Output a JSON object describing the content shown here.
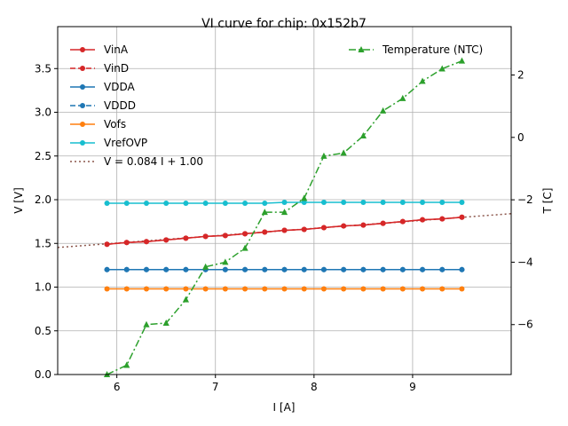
{
  "chart_data": {
    "type": "line",
    "title": "VI curve for chip: 0x152b7",
    "xlabel": "I [A]",
    "ylabel": "V [V]",
    "y2label": "T [C]",
    "xlim": [
      5.4,
      10.0
    ],
    "ylim": [
      0.0,
      3.98
    ],
    "y2lim": [
      -7.6,
      3.55
    ],
    "xticks": [
      6,
      7,
      8,
      9
    ],
    "yticks": [
      0.0,
      0.5,
      1.0,
      1.5,
      2.0,
      2.5,
      3.0,
      3.5
    ],
    "y2ticks": [
      -6,
      -4,
      -2,
      0,
      2
    ],
    "grid": true,
    "x": [
      5.9,
      6.1,
      6.3,
      6.5,
      6.7,
      6.9,
      7.1,
      7.3,
      7.5,
      7.7,
      7.9,
      8.1,
      8.3,
      8.5,
      8.7,
      8.9,
      9.1,
      9.3,
      9.5
    ],
    "series": [
      {
        "name": "VinA",
        "color": "#d62728",
        "style": "solid",
        "marker": "circle",
        "values": [
          1.49,
          1.51,
          1.52,
          1.54,
          1.56,
          1.58,
          1.59,
          1.61,
          1.63,
          1.65,
          1.66,
          1.68,
          1.7,
          1.71,
          1.73,
          1.75,
          1.77,
          1.78,
          1.8
        ]
      },
      {
        "name": "VinD",
        "color": "#d62728",
        "style": "dashed",
        "marker": "circle",
        "values": [
          1.49,
          1.51,
          1.52,
          1.54,
          1.56,
          1.58,
          1.59,
          1.61,
          1.63,
          1.65,
          1.66,
          1.68,
          1.7,
          1.71,
          1.73,
          1.75,
          1.77,
          1.78,
          1.8
        ]
      },
      {
        "name": "VDDA",
        "color": "#1f77b4",
        "style": "solid",
        "marker": "circle",
        "values": [
          1.2,
          1.2,
          1.2,
          1.2,
          1.2,
          1.2,
          1.2,
          1.2,
          1.2,
          1.2,
          1.2,
          1.2,
          1.2,
          1.2,
          1.2,
          1.2,
          1.2,
          1.2,
          1.2
        ]
      },
      {
        "name": "VDDD",
        "color": "#1f77b4",
        "style": "dashed",
        "marker": "circle",
        "values": [
          1.2,
          1.2,
          1.2,
          1.2,
          1.2,
          1.2,
          1.2,
          1.2,
          1.2,
          1.2,
          1.2,
          1.2,
          1.2,
          1.2,
          1.2,
          1.2,
          1.2,
          1.2,
          1.2
        ]
      },
      {
        "name": "Vofs",
        "color": "#ff7f0e",
        "style": "solid",
        "marker": "circle",
        "values": [
          0.98,
          0.98,
          0.98,
          0.98,
          0.98,
          0.98,
          0.98,
          0.98,
          0.98,
          0.98,
          0.98,
          0.98,
          0.98,
          0.98,
          0.98,
          0.98,
          0.98,
          0.98,
          0.98
        ]
      },
      {
        "name": "VrefOVP",
        "color": "#17becf",
        "style": "solid",
        "marker": "circle",
        "values": [
          1.96,
          1.96,
          1.96,
          1.96,
          1.96,
          1.96,
          1.96,
          1.96,
          1.96,
          1.97,
          1.97,
          1.97,
          1.97,
          1.97,
          1.97,
          1.97,
          1.97,
          1.97,
          1.97
        ]
      }
    ],
    "fit": {
      "label": "V = 0.084 I + 1.00",
      "slope": 0.084,
      "intercept": 1.0,
      "color": "#8c564b",
      "style": "dotted"
    },
    "secondary_series": [
      {
        "name": "Temperature (NTC)",
        "color": "#2ca02c",
        "style": "dashdot",
        "marker": "triangle",
        "values": [
          -7.6,
          -7.3,
          -6.0,
          -5.95,
          -5.2,
          -4.15,
          -4.0,
          -3.55,
          -2.4,
          -2.4,
          -1.95,
          -0.6,
          -0.5,
          0.05,
          0.85,
          1.25,
          1.8,
          2.2,
          2.45
        ]
      }
    ],
    "legend_left": "top-left",
    "legend_right": "top-right"
  }
}
